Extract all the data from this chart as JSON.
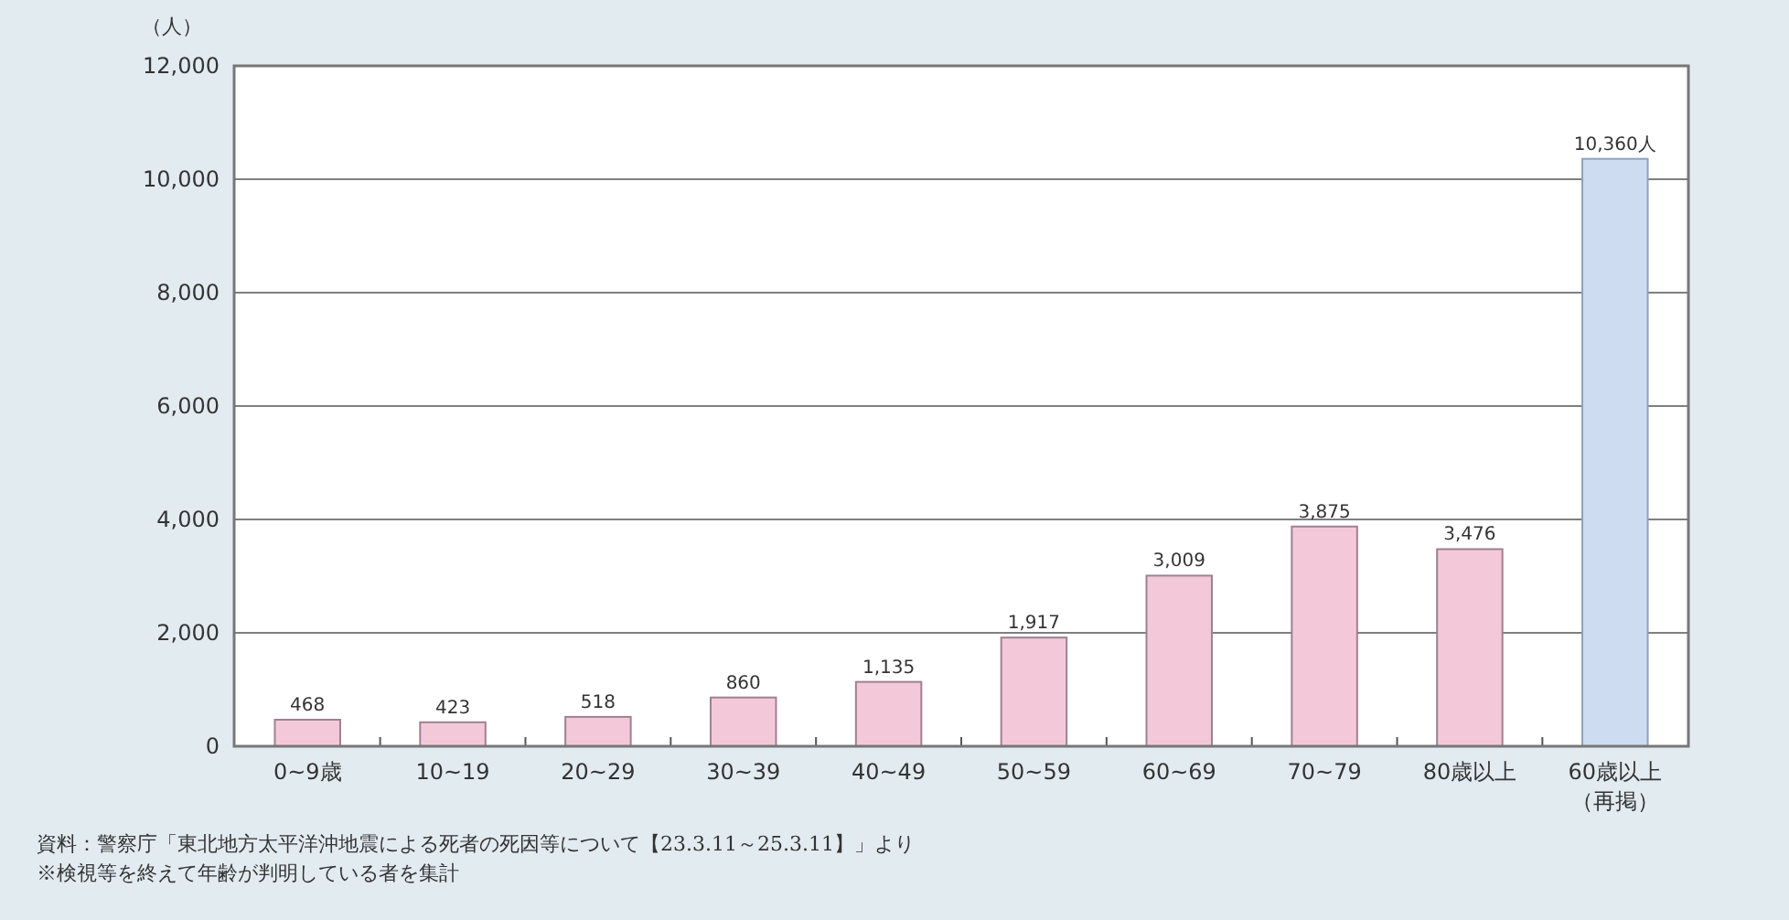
{
  "chart_data": {
    "type": "bar",
    "ylabel": "（人）",
    "categories": [
      "0~9歳",
      "10~19",
      "20~29",
      "30~39",
      "40~49",
      "50~59",
      "60~69",
      "70~79",
      "80歳以上",
      "60歳以上（再掲）"
    ],
    "values": [
      468,
      423,
      518,
      860,
      1135,
      1917,
      3009,
      3875,
      3476,
      10360
    ],
    "value_labels": [
      "468",
      "423",
      "518",
      "860",
      "1,135",
      "1,917",
      "3,009",
      "3,875",
      "3,476",
      "10,360人"
    ],
    "colors": [
      "#f3c9da",
      "#f3c9da",
      "#f3c9da",
      "#f3c9da",
      "#f3c9da",
      "#f3c9da",
      "#f3c9da",
      "#f3c9da",
      "#f3c9da",
      "#cddcf0"
    ],
    "ylim": [
      0,
      12000
    ],
    "yticks": [
      {
        "value": 0,
        "label": "0"
      },
      {
        "value": 2000,
        "label": "2,000"
      },
      {
        "value": 4000,
        "label": "4,000"
      },
      {
        "value": 6000,
        "label": "6,000"
      },
      {
        "value": 8000,
        "label": "8,000"
      },
      {
        "value": 10000,
        "label": "10,000"
      },
      {
        "value": 12000,
        "label": "12,000"
      }
    ],
    "grid": "y",
    "annotations": [
      "資料：警察庁「東北地方太平洋沖地震による死者の死因等について【23.3.11～25.3.11】」より",
      "※検視等を終えて年齢が判明している者を集計"
    ]
  }
}
